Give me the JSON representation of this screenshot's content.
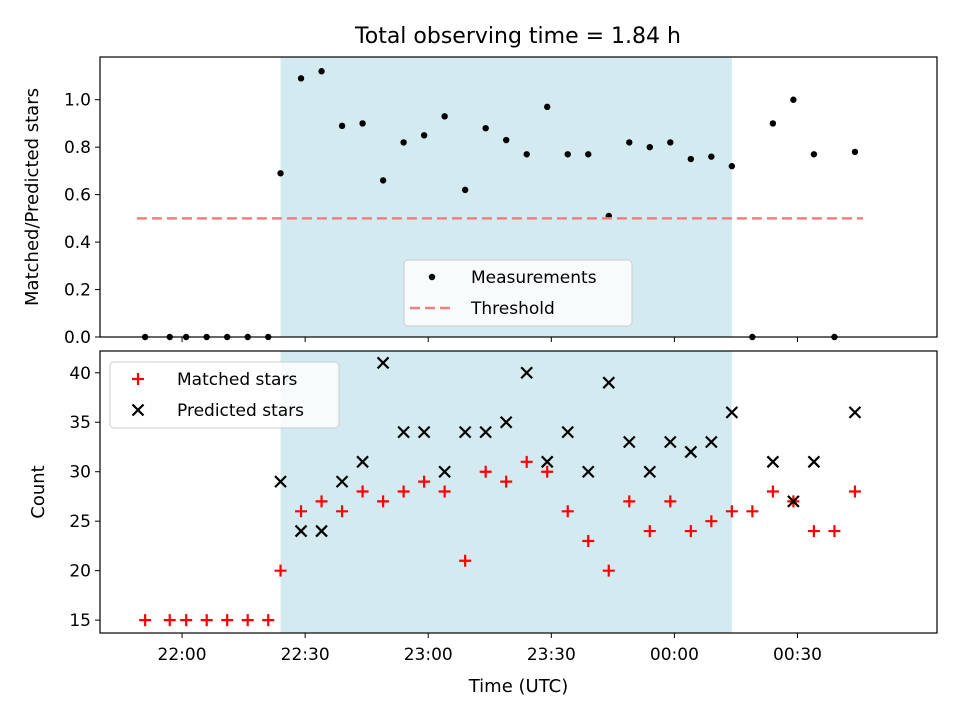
{
  "figure": {
    "title": "Total observing time = 1.84 h"
  },
  "chart_data": [
    {
      "type": "scatter",
      "panel": "top",
      "title": "Total observing time = 1.84 h",
      "xlabel": "",
      "ylabel": "Matched/Predicted stars",
      "xlim": [
        "21:40",
        "01:04"
      ],
      "ylim": [
        0,
        1.18
      ],
      "yticks": [
        0.0,
        0.2,
        0.4,
        0.6,
        0.8,
        1.0
      ],
      "ytick_labels": [
        "0.0",
        "0.2",
        "0.4",
        "0.6",
        "0.8",
        "1.0"
      ],
      "xticks": [
        "22:00",
        "22:30",
        "23:00",
        "23:30",
        "00:00",
        "00:30"
      ],
      "shaded_span": {
        "from": "22:24",
        "to": "00:14",
        "color": "#d4eaf1"
      },
      "legend_position": "lower-center",
      "series": [
        {
          "name": "Measurements",
          "kind": "dot",
          "color": "#000000",
          "x": [
            "21:51",
            "21:57",
            "22:01",
            "22:06",
            "22:11",
            "22:16",
            "22:21",
            "22:24",
            "22:29",
            "22:34",
            "22:39",
            "22:44",
            "22:49",
            "22:54",
            "22:59",
            "23:04",
            "23:09",
            "23:14",
            "23:19",
            "23:24",
            "23:29",
            "23:34",
            "23:39",
            "23:44",
            "23:49",
            "23:54",
            "23:59",
            "00:04",
            "00:09",
            "00:14",
            "00:19",
            "00:24",
            "00:29",
            "00:34",
            "00:39",
            "00:44"
          ],
          "y": [
            0.0,
            0.0,
            0.0,
            0.0,
            0.0,
            0.0,
            0.0,
            0.69,
            1.09,
            1.12,
            0.89,
            0.9,
            0.66,
            0.82,
            0.85,
            0.93,
            0.62,
            0.88,
            0.83,
            0.77,
            0.97,
            0.77,
            0.77,
            0.51,
            0.82,
            0.8,
            0.82,
            0.75,
            0.76,
            0.72,
            0.0,
            0.9,
            1.0,
            0.77,
            0.0,
            0.78
          ]
        },
        {
          "name": "Threshold",
          "kind": "dashed-line",
          "color": "#f08080",
          "x": [
            "21:49",
            "00:46"
          ],
          "y": [
            0.5,
            0.5
          ]
        }
      ]
    },
    {
      "type": "scatter",
      "panel": "bottom",
      "xlabel": "Time (UTC)",
      "ylabel": "Count",
      "xlim": [
        "21:40",
        "01:04"
      ],
      "ylim": [
        13.7,
        42.2
      ],
      "yticks": [
        15,
        20,
        25,
        30,
        35,
        40
      ],
      "ytick_labels": [
        "15",
        "20",
        "25",
        "30",
        "35",
        "40"
      ],
      "xticks": [
        "22:00",
        "22:30",
        "23:00",
        "23:30",
        "00:00",
        "00:30"
      ],
      "xtick_labels": [
        "22:00",
        "22:30",
        "23:00",
        "23:30",
        "00:00",
        "00:30"
      ],
      "shaded_span": {
        "from": "22:24",
        "to": "00:14",
        "color": "#d4eaf1"
      },
      "legend_position": "upper-left",
      "series": [
        {
          "name": "Matched stars",
          "kind": "plus",
          "color": "#ff0000",
          "x": [
            "21:51",
            "21:57",
            "22:01",
            "22:06",
            "22:11",
            "22:16",
            "22:21",
            "22:24",
            "22:29",
            "22:34",
            "22:39",
            "22:44",
            "22:49",
            "22:54",
            "22:59",
            "23:04",
            "23:09",
            "23:14",
            "23:19",
            "23:24",
            "23:29",
            "23:34",
            "23:39",
            "23:44",
            "23:49",
            "23:54",
            "23:59",
            "00:04",
            "00:09",
            "00:14",
            "00:19",
            "00:24",
            "00:29",
            "00:34",
            "00:39",
            "00:44"
          ],
          "y": [
            15,
            15,
            15,
            15,
            15,
            15,
            15,
            20,
            26,
            27,
            26,
            28,
            27,
            28,
            29,
            28,
            21,
            30,
            29,
            31,
            30,
            26,
            23,
            20,
            27,
            24,
            27,
            24,
            25,
            26,
            26,
            28,
            27,
            24,
            24,
            28
          ]
        },
        {
          "name": "Predicted stars",
          "kind": "x",
          "color": "#000000",
          "x": [
            "22:24",
            "22:29",
            "22:34",
            "22:39",
            "22:44",
            "22:49",
            "22:54",
            "22:59",
            "23:04",
            "23:09",
            "23:14",
            "23:19",
            "23:24",
            "23:29",
            "23:34",
            "23:39",
            "23:44",
            "23:49",
            "23:54",
            "23:59",
            "00:04",
            "00:09",
            "00:14",
            "00:24",
            "00:29",
            "00:34",
            "00:44"
          ],
          "y": [
            29,
            24,
            24,
            29,
            31,
            41,
            34,
            34,
            30,
            34,
            34,
            35,
            40,
            31,
            34,
            30,
            39,
            33,
            30,
            33,
            32,
            33,
            36,
            31,
            27,
            31,
            36
          ]
        }
      ]
    }
  ]
}
